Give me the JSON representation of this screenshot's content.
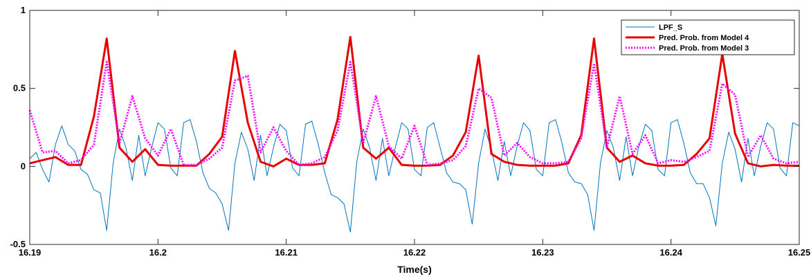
{
  "chart_data": {
    "type": "line",
    "title": "",
    "xlabel": "Time(s)",
    "ylabel": "",
    "xlim": [
      16.19,
      16.25
    ],
    "ylim": [
      -0.5,
      1
    ],
    "grid": false,
    "legend_position": "top-right",
    "x_ticks": [
      16.19,
      16.2,
      16.21,
      16.22,
      16.23,
      16.24,
      16.25
    ],
    "x_tick_labels": [
      "16.19",
      "16.2",
      "16.21",
      "16.22",
      "16.23",
      "16.24",
      "16.25"
    ],
    "y_ticks": [
      -0.5,
      0,
      0.5,
      1
    ],
    "y_tick_labels": [
      "-0.5",
      "0",
      "0.5",
      "1"
    ],
    "series": [
      {
        "name": "LPF_S",
        "color": "#0072BD",
        "style": "solid",
        "thin": true,
        "x": [
          16.19,
          16.1905,
          16.191,
          16.1915,
          16.192,
          16.1925,
          16.193,
          16.1935,
          16.194,
          16.1945,
          16.195,
          16.1955,
          16.196,
          16.1965,
          16.197,
          16.1975,
          16.198,
          16.1985,
          16.199,
          16.1995,
          16.2,
          16.2005,
          16.201,
          16.2015,
          16.202,
          16.2025,
          16.203,
          16.2035,
          16.204,
          16.2045,
          16.205,
          16.2055,
          16.206,
          16.2065,
          16.207,
          16.2075,
          16.208,
          16.2085,
          16.209,
          16.2095,
          16.21,
          16.2105,
          16.211,
          16.2115,
          16.212,
          16.2125,
          16.213,
          16.2135,
          16.214,
          16.2145,
          16.215,
          16.2155,
          16.216,
          16.2165,
          16.217,
          16.2175,
          16.218,
          16.2185,
          16.219,
          16.2195,
          16.22,
          16.2205,
          16.221,
          16.2215,
          16.222,
          16.2225,
          16.223,
          16.2235,
          16.224,
          16.2245,
          16.225,
          16.2255,
          16.226,
          16.2265,
          16.227,
          16.2275,
          16.228,
          16.2285,
          16.229,
          16.2295,
          16.23,
          16.2305,
          16.231,
          16.2315,
          16.232,
          16.2325,
          16.233,
          16.2335,
          16.234,
          16.2345,
          16.235,
          16.2355,
          16.236,
          16.2365,
          16.237,
          16.2375,
          16.238,
          16.2385,
          16.239,
          16.2395,
          16.24,
          16.2405,
          16.241,
          16.2415,
          16.242,
          16.2425,
          16.243,
          16.2435,
          16.244,
          16.2445,
          16.245,
          16.2455,
          16.246,
          16.2465,
          16.247,
          16.2475,
          16.248,
          16.2485,
          16.249,
          16.2495,
          16.25
        ],
        "values": [
          0.05,
          0.09,
          -0.02,
          -0.1,
          0.14,
          0.26,
          0.14,
          0.1,
          -0.02,
          -0.05,
          -0.15,
          -0.17,
          -0.41,
          0.02,
          0.24,
          0.12,
          -0.09,
          0.2,
          -0.06,
          0.12,
          0.28,
          0.24,
          -0.01,
          -0.06,
          0.28,
          0.3,
          0.16,
          -0.04,
          -0.14,
          -0.17,
          -0.24,
          -0.41,
          0.02,
          0.22,
          0.11,
          -0.09,
          0.2,
          -0.06,
          0.12,
          0.27,
          0.23,
          -0.01,
          -0.06,
          0.27,
          0.29,
          0.14,
          -0.04,
          -0.18,
          -0.2,
          -0.24,
          -0.42,
          0.03,
          0.24,
          0.12,
          -0.09,
          0.18,
          -0.06,
          0.12,
          0.28,
          0.24,
          -0.02,
          -0.06,
          0.25,
          0.28,
          0.12,
          -0.04,
          -0.1,
          -0.11,
          -0.15,
          -0.37,
          0.02,
          0.24,
          0.11,
          -0.09,
          0.16,
          -0.06,
          0.13,
          0.28,
          0.23,
          -0.02,
          -0.06,
          0.28,
          0.3,
          0.15,
          -0.04,
          -0.1,
          -0.11,
          -0.18,
          -0.41,
          0.02,
          0.23,
          0.12,
          -0.09,
          0.19,
          -0.06,
          0.13,
          0.27,
          0.23,
          -0.02,
          -0.06,
          0.28,
          0.3,
          0.15,
          -0.04,
          -0.11,
          -0.11,
          -0.2,
          -0.38,
          0.02,
          0.22,
          0.11,
          -0.1,
          0.18,
          -0.06,
          0.13,
          0.28,
          0.24,
          -0.01,
          -0.06,
          0.28,
          0.26
        ]
      },
      {
        "name": "Pred. Prob. from Model 4",
        "color": "#E60000",
        "style": "solid",
        "thin": false,
        "x": [
          16.19,
          16.191,
          16.192,
          16.193,
          16.194,
          16.195,
          16.196,
          16.197,
          16.198,
          16.199,
          16.2,
          16.201,
          16.202,
          16.203,
          16.204,
          16.205,
          16.206,
          16.207,
          16.208,
          16.209,
          16.21,
          16.211,
          16.212,
          16.213,
          16.214,
          16.215,
          16.216,
          16.217,
          16.218,
          16.219,
          16.22,
          16.221,
          16.222,
          16.223,
          16.224,
          16.225,
          16.226,
          16.227,
          16.228,
          16.229,
          16.23,
          16.231,
          16.232,
          16.233,
          16.234,
          16.235,
          16.236,
          16.237,
          16.238,
          16.239,
          16.24,
          16.241,
          16.242,
          16.243,
          16.244,
          16.245,
          16.246,
          16.247,
          16.248,
          16.249,
          16.25
        ],
        "values": [
          0.02,
          0.04,
          0.06,
          0.01,
          0.01,
          0.32,
          0.82,
          0.12,
          0.03,
          0.11,
          0.01,
          0.005,
          0.005,
          0.005,
          0.08,
          0.19,
          0.74,
          0.28,
          0.03,
          0.0,
          0.05,
          0.01,
          0.01,
          0.02,
          0.3,
          0.83,
          0.12,
          0.05,
          0.12,
          0.01,
          0.005,
          0.005,
          0.01,
          0.07,
          0.22,
          0.71,
          0.08,
          0.03,
          0.01,
          0.005,
          0.005,
          0.005,
          0.02,
          0.2,
          0.82,
          0.12,
          0.03,
          0.07,
          0.02,
          0.005,
          0.005,
          0.01,
          0.08,
          0.18,
          0.72,
          0.21,
          0.02,
          0.0,
          0.01,
          0.005,
          0.005
        ]
      },
      {
        "name": "Pred. Prob. from Model 3",
        "color": "#FF00FF",
        "style": "dotted",
        "thin": false,
        "x": [
          16.19,
          16.191,
          16.192,
          16.193,
          16.194,
          16.195,
          16.196,
          16.197,
          16.198,
          16.199,
          16.2,
          16.201,
          16.202,
          16.203,
          16.204,
          16.205,
          16.206,
          16.207,
          16.208,
          16.209,
          16.21,
          16.211,
          16.212,
          16.213,
          16.214,
          16.215,
          16.216,
          16.217,
          16.218,
          16.219,
          16.22,
          16.221,
          16.222,
          16.223,
          16.224,
          16.225,
          16.226,
          16.227,
          16.228,
          16.229,
          16.23,
          16.231,
          16.232,
          16.233,
          16.234,
          16.235,
          16.236,
          16.237,
          16.238,
          16.239,
          16.24,
          16.241,
          16.242,
          16.243,
          16.244,
          16.245,
          16.246,
          16.247,
          16.248,
          16.249,
          16.25
        ],
        "values": [
          0.36,
          0.09,
          0.1,
          0.02,
          0.04,
          0.14,
          0.67,
          0.15,
          0.45,
          0.18,
          0.07,
          0.24,
          0.01,
          0.01,
          0.05,
          0.12,
          0.55,
          0.58,
          0.09,
          0.25,
          0.1,
          0.01,
          0.02,
          0.06,
          0.23,
          0.67,
          0.15,
          0.45,
          0.13,
          0.05,
          0.26,
          0.01,
          0.02,
          0.04,
          0.13,
          0.5,
          0.44,
          0.07,
          0.15,
          0.06,
          0.02,
          0.02,
          0.03,
          0.18,
          0.66,
          0.12,
          0.45,
          0.08,
          0.2,
          0.02,
          0.04,
          0.03,
          0.06,
          0.1,
          0.53,
          0.46,
          0.06,
          0.2,
          0.05,
          0.02,
          0.03
        ]
      }
    ]
  }
}
